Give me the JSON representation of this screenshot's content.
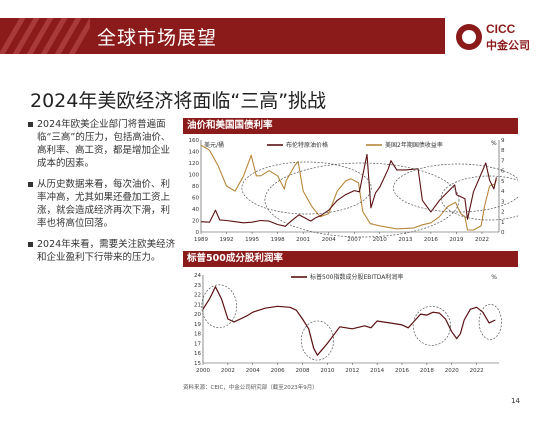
{
  "header": {
    "title": "全球市场展望"
  },
  "logo": {
    "en": "CICC",
    "cn": "中金公司"
  },
  "subtitle": "2024年美欧经济将面临“三高”挑战",
  "bullets": [
    "2024年欧美企业部门将普遍面临“三高”的压力，包括高油价、高利率、高工资，都是增加企业成本的因素。",
    "从历史数据来看，每次油价、利率冲高，尤其如果还叠加工资上涨，就会造成经济再次下滑，利率也将高位回落。",
    "2024年来看，需要关注欧美经济和企业盈利下行带来的压力。"
  ],
  "source": "资料来源：CEIC，中金公司研究部（截至2023年9月）",
  "page_number": "14",
  "colors": {
    "brand": "#8b1a1a",
    "oil": "#5a1010",
    "yield": "#b8863b"
  },
  "chart_data": [
    {
      "type": "line",
      "title": "油价和美国国债利率",
      "ylabel_left": "美元/桶",
      "ylabel_right": "%",
      "legend_position": "top",
      "xlim": [
        1989,
        2024
      ],
      "ylim_left": [
        0,
        160
      ],
      "ylim_right": [
        0,
        9
      ],
      "yticks_left": [
        0,
        20,
        40,
        60,
        80,
        100,
        120,
        140,
        160
      ],
      "yticks_right": [
        0,
        1,
        2,
        3,
        4,
        5,
        6,
        7,
        8,
        9
      ],
      "xticks": [
        "1989",
        "1992",
        "1995",
        "1998",
        "2001",
        "2004",
        "2007",
        "2010",
        "2013",
        "2016",
        "2019",
        "2022"
      ],
      "series": [
        {
          "name": "布伦特原油价格",
          "axis": "left",
          "x": [
            1989,
            1990,
            1990.7,
            1991.2,
            1992,
            1993,
            1994,
            1995,
            1996,
            1997,
            1998,
            1998.9,
            1999.5,
            2000.5,
            2001,
            2001.9,
            2002.5,
            2003,
            2004,
            2005,
            2006,
            2007,
            2007.6,
            2008.5,
            2008.95,
            2009.5,
            2010,
            2011,
            2011.3,
            2012,
            2013,
            2014.5,
            2015,
            2016,
            2017,
            2018.8,
            2019,
            2020,
            2020.3,
            2021,
            2022.45,
            2022.9,
            2023.4,
            2023.7
          ],
          "values": [
            18,
            17,
            38,
            21,
            20,
            18,
            16,
            17,
            20,
            19,
            13,
            10,
            18,
            30,
            26,
            19,
            25,
            28,
            38,
            55,
            65,
            72,
            70,
            135,
            42,
            68,
            78,
            110,
            124,
            108,
            108,
            110,
            55,
            35,
            55,
            82,
            65,
            58,
            22,
            70,
            120,
            90,
            75,
            95
          ]
        },
        {
          "name": "美国2年期国债收益率",
          "axis": "right",
          "x": [
            1989,
            1990,
            1991,
            1992,
            1993,
            1994,
            1994.9,
            1995.5,
            1996,
            1997,
            1998,
            1998.8,
            1999,
            2000,
            2000.4,
            2001,
            2002,
            2003,
            2004,
            2005,
            2006,
            2006.6,
            2007.5,
            2008,
            2008.9,
            2009,
            2010,
            2012,
            2014,
            2015,
            2016,
            2017,
            2018,
            2018.9,
            2019.5,
            2020,
            2020.3,
            2021,
            2021.9,
            2022.3,
            2022.9,
            2023.5,
            2023.7
          ],
          "values": [
            8.5,
            8,
            6.5,
            4.5,
            4,
            5.5,
            7.5,
            5.5,
            5.5,
            6,
            5.5,
            4.2,
            5,
            6.5,
            6.9,
            4,
            2.5,
            1.5,
            1.8,
            4,
            5,
            5.2,
            4.8,
            2,
            0.8,
            0.8,
            0.6,
            0.3,
            0.4,
            0.7,
            0.9,
            1.5,
            2.5,
            2.9,
            1.8,
            1.5,
            0.2,
            0.2,
            0.6,
            2.5,
            4.5,
            4.7,
            5.1
          ]
        }
      ]
    },
    {
      "type": "line",
      "title": "标普500成分股利润率",
      "ylabel_right": "%",
      "legend_position": "top",
      "xlim": [
        2000,
        2023.8
      ],
      "ylim": [
        15,
        24
      ],
      "yticks": [
        15,
        16,
        17,
        18,
        19,
        20,
        21,
        22,
        23,
        24
      ],
      "xticks": [
        "2000",
        "2002",
        "2004",
        "2006",
        "2008",
        "2010",
        "2012",
        "2014",
        "2016",
        "2018",
        "2020",
        "2022"
      ],
      "series": [
        {
          "name": "标普500指数成分股EBITDA利润率",
          "x": [
            2000,
            2000.5,
            2000.7,
            2001,
            2001.5,
            2002,
            2002.5,
            2003,
            2003.5,
            2004,
            2005,
            2006,
            2007,
            2007.5,
            2008,
            2008.5,
            2008.9,
            2009.2,
            2009.6,
            2010,
            2011,
            2012,
            2013,
            2013.5,
            2014,
            2015,
            2016,
            2016.5,
            2017,
            2017.5,
            2018,
            2018.5,
            2019,
            2019.5,
            2020,
            2020.4,
            2020.7,
            2021,
            2021.5,
            2022,
            2022.5,
            2023,
            2023.5
          ],
          "values": [
            20.5,
            21.5,
            22,
            22.8,
            21.5,
            19.5,
            19.2,
            19.5,
            19.8,
            20.2,
            20.6,
            20.8,
            20.7,
            20.4,
            19.5,
            18.5,
            16.5,
            15.8,
            16.4,
            17,
            18.7,
            18.5,
            18.8,
            18.6,
            19.3,
            19.1,
            18.9,
            18.6,
            19.3,
            20,
            19.9,
            20.2,
            20.1,
            19.5,
            18.2,
            17.5,
            18,
            19.4,
            20.5,
            20.7,
            20.2,
            19.1,
            19.4
          ]
        }
      ]
    }
  ]
}
